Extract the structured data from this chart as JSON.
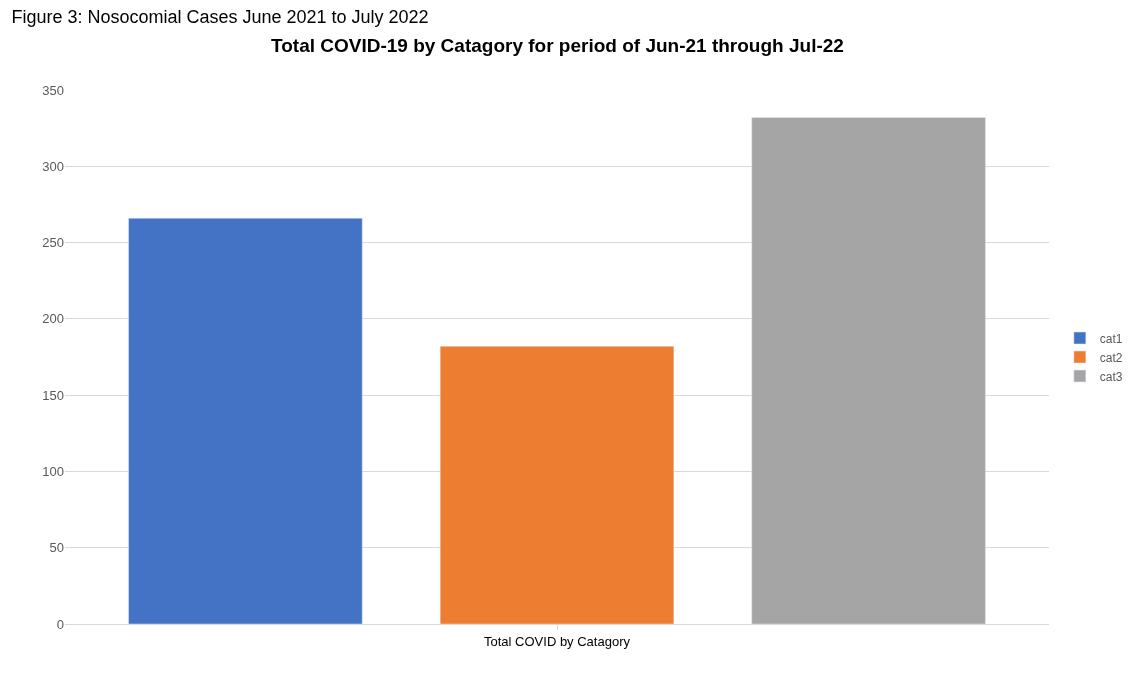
{
  "chart_data": {
    "type": "bar",
    "title": "Figure 3: Nosocomial Cases June 2021 to July 2022",
    "subtitle": "Total COVID-19 by Catagory for period of Jun-21 through Jul-22",
    "categories": [
      "Total COVID by Catagory"
    ],
    "series": [
      {
        "name": "cat1",
        "color": "#4472c4",
        "values": [
          266
        ]
      },
      {
        "name": "cat2",
        "color": "#ed7d31",
        "values": [
          182
        ]
      },
      {
        "name": "cat3",
        "color": "#a5a5a5",
        "values": [
          332
        ]
      }
    ],
    "ylim": [
      0,
      350
    ],
    "yticks": [
      0,
      50,
      100,
      150,
      200,
      250,
      300,
      350
    ],
    "grid": "y",
    "legend": "right"
  }
}
